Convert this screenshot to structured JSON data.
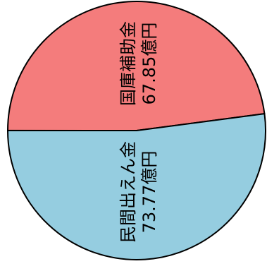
{
  "chart_data": {
    "type": "pie",
    "title": "",
    "slices": [
      {
        "label": "国庫補助金",
        "value": 67.85,
        "value_text": "67.85億円",
        "color": "#F47C7C"
      },
      {
        "label": "民間出えん金",
        "value": 73.77,
        "value_text": "73.77億円",
        "color": "#95CDE0"
      }
    ],
    "label_orientation": "rotated-vertical",
    "outline_color": "#000000"
  }
}
